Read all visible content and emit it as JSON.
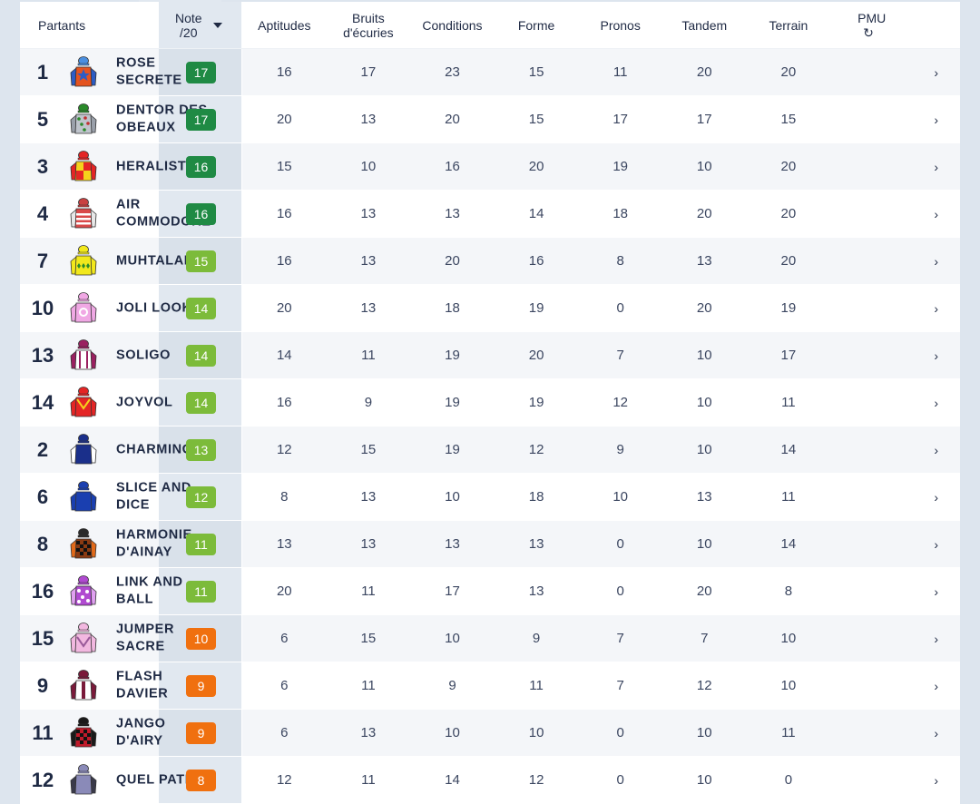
{
  "header": {
    "partants": "Partants",
    "note_line1": "Note",
    "note_line2": "/20",
    "aptitudes": "Aptitudes",
    "bruits_line1": "Bruits",
    "bruits_line2": "d'écuries",
    "conditions": "Conditions",
    "forme": "Forme",
    "pronos": "Pronos",
    "tandem": "Tandem",
    "terrain": "Terrain",
    "pmu": "PMU",
    "refresh_icon": "↻"
  },
  "colors": {
    "dark_green": "#1f8a44",
    "light_green": "#7cbb3a",
    "orange": "#f0700f"
  },
  "row_chevron": "›",
  "rows": [
    {
      "num": "1",
      "name": "ROSE SECRETE",
      "note": "17",
      "grade": "dark",
      "aptitudes": "16",
      "bruits": "17",
      "conditions": "23",
      "forme": "15",
      "pronos": "11",
      "tandem": "20",
      "terrain": "20",
      "silk": {
        "body": "#e4531f",
        "sleeve": "#2c5cc5",
        "cap": "#4a8fe0",
        "mark": "star"
      }
    },
    {
      "num": "5",
      "name": "DENTOR DES OBEAUX",
      "note": "17",
      "grade": "dark",
      "aptitudes": "20",
      "bruits": "13",
      "conditions": "20",
      "forme": "15",
      "pronos": "17",
      "tandem": "17",
      "terrain": "15",
      "silk": {
        "body": "#bfc4cc",
        "sleeve": "#9aa0aa",
        "cap": "#2a8a2a",
        "mark": "dots"
      }
    },
    {
      "num": "3",
      "name": "HERALISTE",
      "note": "16",
      "grade": "dark",
      "aptitudes": "15",
      "bruits": "10",
      "conditions": "16",
      "forme": "20",
      "pronos": "19",
      "tandem": "10",
      "terrain": "20",
      "silk": {
        "body": "#f5d21c",
        "sleeve": "#e42525",
        "cap": "#e42525",
        "mark": "quarters"
      }
    },
    {
      "num": "4",
      "name": "AIR COMMODORE",
      "note": "16",
      "grade": "dark",
      "aptitudes": "16",
      "bruits": "13",
      "conditions": "13",
      "forme": "14",
      "pronos": "18",
      "tandem": "20",
      "terrain": "20",
      "silk": {
        "body": "#d94a4a",
        "sleeve": "#e8e8e8",
        "cap": "#c94040",
        "mark": "hoops"
      }
    },
    {
      "num": "7",
      "name": "MUHTALAB",
      "note": "15",
      "grade": "light",
      "aptitudes": "16",
      "bruits": "13",
      "conditions": "20",
      "forme": "16",
      "pronos": "8",
      "tandem": "13",
      "terrain": "20",
      "silk": {
        "body": "#f2e81c",
        "sleeve": "#f2e81c",
        "cap": "#f2e81c",
        "mark": "diamonds"
      }
    },
    {
      "num": "10",
      "name": "JOLI LOOK",
      "note": "14",
      "grade": "light",
      "aptitudes": "20",
      "bruits": "13",
      "conditions": "18",
      "forme": "19",
      "pronos": "0",
      "tandem": "20",
      "terrain": "19",
      "silk": {
        "body": "#f0a8e4",
        "sleeve": "#f0a8e4",
        "cap": "#f0a8e4",
        "mark": "ring"
      }
    },
    {
      "num": "13",
      "name": "SOLIGO",
      "note": "14",
      "grade": "light",
      "aptitudes": "14",
      "bruits": "11",
      "conditions": "19",
      "forme": "20",
      "pronos": "7",
      "tandem": "10",
      "terrain": "17",
      "silk": {
        "body": "#ffffff",
        "sleeve": "#9a2060",
        "cap": "#9a2060",
        "mark": "braces"
      }
    },
    {
      "num": "14",
      "name": "JOYVOL",
      "note": "14",
      "grade": "light",
      "aptitudes": "16",
      "bruits": "9",
      "conditions": "19",
      "forme": "19",
      "pronos": "12",
      "tandem": "10",
      "terrain": "11",
      "silk": {
        "body": "#e42525",
        "sleeve": "#e42525",
        "cap": "#e42525",
        "mark": "vee"
      }
    },
    {
      "num": "2",
      "name": "CHARMING",
      "note": "13",
      "grade": "light",
      "aptitudes": "12",
      "bruits": "15",
      "conditions": "19",
      "forme": "12",
      "pronos": "9",
      "tandem": "10",
      "terrain": "14",
      "silk": {
        "body": "#1a2f8a",
        "sleeve": "#ffffff",
        "cap": "#1a2f8a",
        "mark": "none"
      }
    },
    {
      "num": "6",
      "name": "SLICE AND DICE",
      "note": "12",
      "grade": "light",
      "aptitudes": "8",
      "bruits": "13",
      "conditions": "10",
      "forme": "18",
      "pronos": "10",
      "tandem": "13",
      "terrain": "11",
      "silk": {
        "body": "#1a3fb0",
        "sleeve": "#1a3fb0",
        "cap": "#1a3fb0",
        "mark": "none"
      }
    },
    {
      "num": "8",
      "name": "HARMONIE D'AINAY",
      "note": "11",
      "grade": "light",
      "aptitudes": "13",
      "bruits": "13",
      "conditions": "13",
      "forme": "13",
      "pronos": "0",
      "tandem": "10",
      "terrain": "14",
      "silk": {
        "body": "#8a3a12",
        "sleeve": "#e26a1a",
        "cap": "#2a2a2a",
        "mark": "checks"
      }
    },
    {
      "num": "16",
      "name": "LINK AND BALL",
      "note": "11",
      "grade": "light",
      "aptitudes": "20",
      "bruits": "11",
      "conditions": "17",
      "forme": "13",
      "pronos": "0",
      "tandem": "20",
      "terrain": "8",
      "silk": {
        "body": "#b04ad0",
        "sleeve": "#e0a0f0",
        "cap": "#b04ad0",
        "mark": "stars"
      }
    },
    {
      "num": "15",
      "name": "JUMPER SACRE",
      "note": "10",
      "grade": "orange",
      "aptitudes": "6",
      "bruits": "15",
      "conditions": "10",
      "forme": "9",
      "pronos": "7",
      "tandem": "7",
      "terrain": "10",
      "silk": {
        "body": "#f2b8e0",
        "sleeve": "#f2b8e0",
        "cap": "#f2b8e0",
        "mark": "chevron"
      }
    },
    {
      "num": "9",
      "name": "FLASH DAVIER",
      "note": "9",
      "grade": "orange",
      "aptitudes": "6",
      "bruits": "11",
      "conditions": "9",
      "forme": "11",
      "pronos": "7",
      "tandem": "12",
      "terrain": "10",
      "silk": {
        "body": "#ffffff",
        "sleeve": "#7a1a3a",
        "cap": "#7a1a3a",
        "mark": "stripe"
      }
    },
    {
      "num": "11",
      "name": "JANGO D'AIRY",
      "note": "9",
      "grade": "orange",
      "aptitudes": "6",
      "bruits": "13",
      "conditions": "10",
      "forme": "10",
      "pronos": "0",
      "tandem": "10",
      "terrain": "11",
      "silk": {
        "body": "#c01a2a",
        "sleeve": "#1a1a1a",
        "cap": "#1a1a1a",
        "mark": "checks"
      }
    },
    {
      "num": "12",
      "name": "QUEL PATRON",
      "note": "8",
      "grade": "orange",
      "aptitudes": "12",
      "bruits": "11",
      "conditions": "14",
      "forme": "12",
      "pronos": "0",
      "tandem": "10",
      "terrain": "0",
      "silk": {
        "body": "#8a8ab8",
        "sleeve": "#3a3a4a",
        "cap": "#8a8ab8",
        "mark": "none"
      }
    }
  ]
}
